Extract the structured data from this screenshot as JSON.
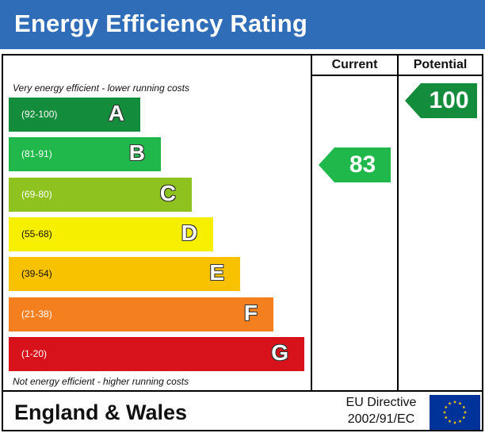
{
  "title": "Energy Efficiency Rating",
  "columns": {
    "current": "Current",
    "potential": "Potential"
  },
  "notes": {
    "top": "Very energy efficient - lower running costs",
    "bottom": "Not energy efficient - higher running costs"
  },
  "chart_data": {
    "type": "bar",
    "title": "Energy Efficiency Rating",
    "categories": [
      "A",
      "B",
      "C",
      "D",
      "E",
      "F",
      "G"
    ],
    "bands": [
      {
        "letter": "A",
        "range": "(92-100)",
        "color": "#138c3b",
        "text": "light"
      },
      {
        "letter": "B",
        "range": "(81-91)",
        "color": "#20b84a",
        "text": "light"
      },
      {
        "letter": "C",
        "range": "(69-80)",
        "color": "#8dc21f",
        "text": "light"
      },
      {
        "letter": "D",
        "range": "(55-68)",
        "color": "#f7ef00",
        "text": "dark"
      },
      {
        "letter": "E",
        "range": "(39-54)",
        "color": "#f8c200",
        "text": "dark"
      },
      {
        "letter": "F",
        "range": "(21-38)",
        "color": "#f37f1f",
        "text": "light"
      },
      {
        "letter": "G",
        "range": "(1-20)",
        "color": "#d8121b",
        "text": "light"
      }
    ],
    "current": {
      "value": "83",
      "band": "B",
      "color": "#20b84a"
    },
    "potential": {
      "value": "100",
      "band": "A",
      "color": "#138c3b"
    }
  },
  "footer": {
    "region": "England & Wales",
    "directive_line1": "EU Directive",
    "directive_line2": "2002/91/EC",
    "flag_icon": "eu-flag-icon",
    "flag_color": "#003399",
    "star_color": "#ffcc00"
  }
}
